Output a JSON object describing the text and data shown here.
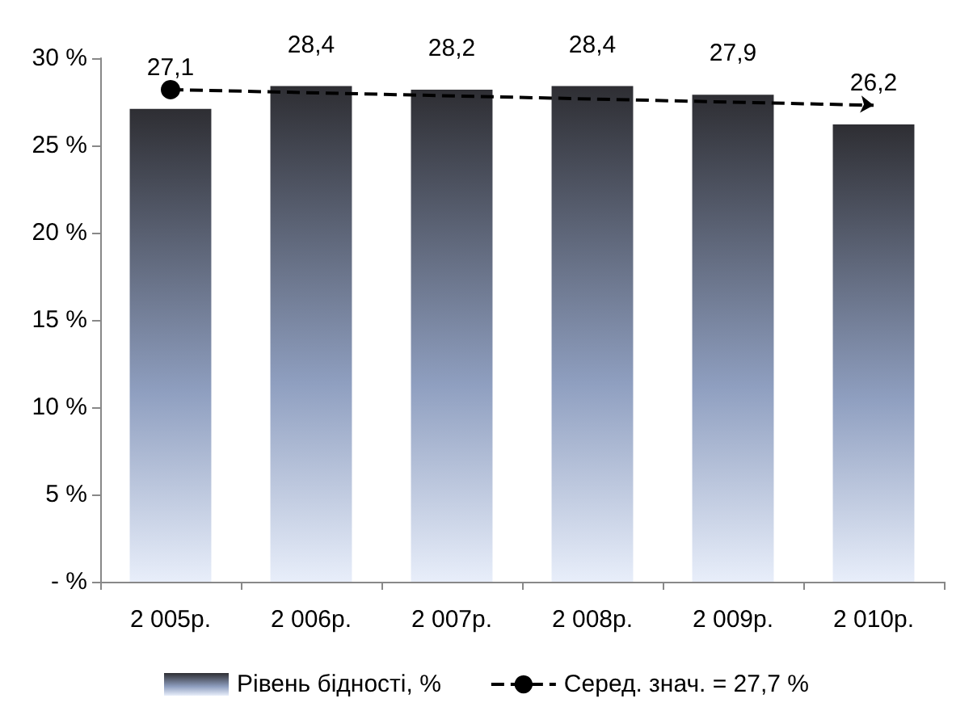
{
  "chart_data": {
    "type": "bar",
    "categories": [
      "2 005р.",
      "2 006р.",
      "2 007р.",
      "2 008р.",
      "2 009р.",
      "2 010р."
    ],
    "series": [
      {
        "name": "Рівень бідності, %",
        "color": "#2e2e33",
        "values": [
          27.1,
          28.4,
          28.2,
          28.4,
          27.9,
          26.2
        ],
        "value_labels": [
          "27,1",
          "28,4",
          "28,2",
          "28,4",
          "27,9",
          "26,2"
        ]
      },
      {
        "name": "Серед. знач. = 27,7 %",
        "type": "line",
        "color": "#000000",
        "x": [
          "2 005р.",
          "2 010р."
        ],
        "values": [
          28.2,
          27.3
        ],
        "marker": "circle",
        "line_style": "dashed"
      }
    ],
    "ylim": [
      0,
      30
    ],
    "yticks": [
      {
        "value": 0,
        "label": "- %"
      },
      {
        "value": 5,
        "label": "5 %"
      },
      {
        "value": 10,
        "label": "10 %"
      },
      {
        "value": 15,
        "label": "15 %"
      },
      {
        "value": 20,
        "label": "20 %"
      },
      {
        "value": 25,
        "label": "25 %"
      },
      {
        "value": 30,
        "label": "30 %"
      }
    ],
    "grid": false,
    "legend": "bottom"
  }
}
